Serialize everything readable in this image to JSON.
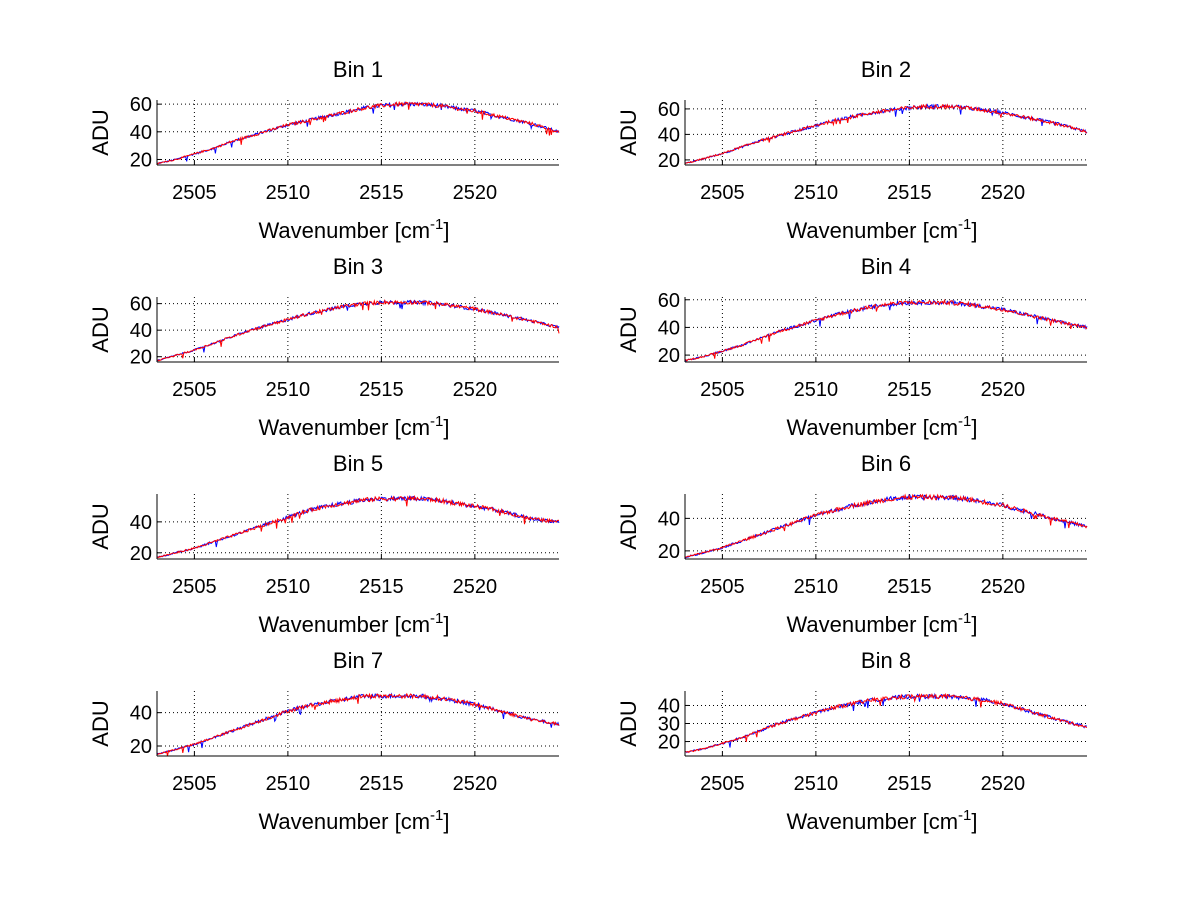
{
  "figure": {
    "background": "#ffffff",
    "series_colors": [
      "#0000ff",
      "#ff0000"
    ]
  },
  "chart_data": [
    {
      "type": "line",
      "title": "Bin 1",
      "xlabel": "Wavenumber [cm",
      "xlabel_sup": "-1",
      "xlabel_close": "]",
      "ylabel": "ADU",
      "xlim": [
        2503,
        2524.5
      ],
      "ylim": [
        16,
        63
      ],
      "xticks": [
        2505,
        2510,
        2515,
        2520
      ],
      "yticks": [
        20,
        40,
        60
      ],
      "grid": true,
      "x": [
        2503,
        2504,
        2505,
        2506,
        2507,
        2508,
        2509,
        2510,
        2511,
        2512,
        2513,
        2514,
        2515,
        2516,
        2517,
        2518,
        2519,
        2520,
        2521,
        2522,
        2523,
        2524.5
      ],
      "series": [
        {
          "values": [
            17,
            20,
            24,
            28,
            33,
            37,
            41,
            45,
            48,
            51,
            54,
            57,
            59,
            60,
            60,
            59,
            57,
            55,
            52,
            49,
            46,
            40
          ]
        },
        {
          "values": [
            17,
            20,
            24,
            28,
            33,
            37,
            41,
            45,
            48,
            51,
            54,
            57,
            59,
            60,
            60,
            59,
            57,
            55,
            52,
            49,
            46,
            40
          ]
        }
      ],
      "noise": 2.2
    },
    {
      "type": "line",
      "title": "Bin 2",
      "xlabel": "Wavenumber [cm",
      "xlabel_sup": "-1",
      "xlabel_close": "]",
      "ylabel": "ADU",
      "xlim": [
        2503,
        2524.5
      ],
      "ylim": [
        16,
        67
      ],
      "xticks": [
        2505,
        2510,
        2515,
        2520
      ],
      "yticks": [
        20,
        40,
        60
      ],
      "grid": true,
      "x": [
        2503,
        2504,
        2505,
        2506,
        2507,
        2508,
        2509,
        2510,
        2511,
        2512,
        2513,
        2514,
        2515,
        2516,
        2517,
        2518,
        2519,
        2520,
        2521,
        2522,
        2523,
        2524.5
      ],
      "series": [
        {
          "values": [
            17,
            21,
            25,
            30,
            35,
            39,
            43,
            47,
            51,
            54,
            57,
            59,
            61,
            62,
            62,
            61,
            59,
            57,
            54,
            51,
            48,
            42
          ]
        },
        {
          "values": [
            17,
            21,
            25,
            30,
            35,
            39,
            43,
            47,
            51,
            54,
            57,
            59,
            61,
            62,
            62,
            61,
            59,
            57,
            54,
            51,
            48,
            42
          ]
        }
      ],
      "noise": 2.4
    },
    {
      "type": "line",
      "title": "Bin 3",
      "xlabel": "Wavenumber [cm",
      "xlabel_sup": "-1",
      "xlabel_close": "]",
      "ylabel": "ADU",
      "xlim": [
        2503,
        2524.5
      ],
      "ylim": [
        16,
        65
      ],
      "xticks": [
        2505,
        2510,
        2515,
        2520
      ],
      "yticks": [
        20,
        40,
        60
      ],
      "grid": true,
      "x": [
        2503,
        2504,
        2505,
        2506,
        2507,
        2508,
        2509,
        2510,
        2511,
        2512,
        2513,
        2514,
        2515,
        2516,
        2517,
        2518,
        2519,
        2520,
        2521,
        2522,
        2523,
        2524.5
      ],
      "series": [
        {
          "values": [
            17,
            21,
            25,
            30,
            35,
            40,
            44,
            48,
            52,
            55,
            58,
            60,
            61,
            61,
            61,
            60,
            58,
            56,
            53,
            50,
            47,
            42
          ]
        },
        {
          "values": [
            17,
            21,
            25,
            30,
            35,
            40,
            44,
            48,
            52,
            55,
            58,
            60,
            61,
            61,
            61,
            60,
            58,
            56,
            53,
            50,
            47,
            42
          ]
        }
      ],
      "noise": 2.2
    },
    {
      "type": "line",
      "title": "Bin 4",
      "xlabel": "Wavenumber [cm",
      "xlabel_sup": "-1",
      "xlabel_close": "]",
      "ylabel": "ADU",
      "xlim": [
        2503,
        2524.5
      ],
      "ylim": [
        15,
        62
      ],
      "xticks": [
        2505,
        2510,
        2515,
        2520
      ],
      "yticks": [
        20,
        40,
        60
      ],
      "grid": true,
      "x": [
        2503,
        2504,
        2505,
        2506,
        2507,
        2508,
        2509,
        2510,
        2511,
        2512,
        2513,
        2514,
        2515,
        2516,
        2517,
        2518,
        2519,
        2520,
        2521,
        2522,
        2523,
        2524.5
      ],
      "series": [
        {
          "values": [
            16,
            19,
            23,
            27,
            32,
            37,
            41,
            45,
            49,
            52,
            55,
            57,
            58,
            58,
            58,
            57,
            55,
            53,
            50,
            47,
            44,
            40
          ]
        },
        {
          "values": [
            16,
            19,
            23,
            27,
            32,
            37,
            41,
            45,
            49,
            52,
            55,
            57,
            58,
            58,
            58,
            57,
            55,
            53,
            50,
            47,
            44,
            40
          ]
        }
      ],
      "noise": 2.3
    },
    {
      "type": "line",
      "title": "Bin 5",
      "xlabel": "Wavenumber [cm",
      "xlabel_sup": "-1",
      "xlabel_close": "]",
      "ylabel": "ADU",
      "xlim": [
        2503,
        2524.5
      ],
      "ylim": [
        16,
        58
      ],
      "xticks": [
        2505,
        2510,
        2515,
        2520
      ],
      "yticks": [
        20,
        40
      ],
      "grid": true,
      "x": [
        2503,
        2504,
        2505,
        2506,
        2507,
        2508,
        2509,
        2510,
        2511,
        2512,
        2513,
        2514,
        2515,
        2516,
        2517,
        2518,
        2519,
        2520,
        2521,
        2522,
        2523,
        2524.5
      ],
      "series": [
        {
          "values": [
            17,
            20,
            23,
            27,
            31,
            35,
            39,
            43,
            47,
            50,
            52,
            54,
            55,
            55,
            55,
            54,
            52,
            50,
            48,
            45,
            42,
            40
          ]
        },
        {
          "values": [
            17,
            20,
            23,
            27,
            31,
            35,
            39,
            43,
            47,
            50,
            52,
            54,
            55,
            55,
            55,
            54,
            52,
            50,
            48,
            45,
            42,
            40
          ]
        }
      ],
      "noise": 2.2
    },
    {
      "type": "line",
      "title": "Bin 6",
      "xlabel": "Wavenumber [cm",
      "xlabel_sup": "-1",
      "xlabel_close": "]",
      "ylabel": "ADU",
      "xlim": [
        2503,
        2524.5
      ],
      "ylim": [
        15,
        55
      ],
      "xticks": [
        2505,
        2510,
        2515,
        2520
      ],
      "yticks": [
        20,
        40
      ],
      "grid": true,
      "x": [
        2503,
        2504,
        2505,
        2506,
        2507,
        2508,
        2509,
        2510,
        2511,
        2512,
        2513,
        2514,
        2515,
        2516,
        2517,
        2518,
        2519,
        2520,
        2521,
        2522,
        2523,
        2524.5
      ],
      "series": [
        {
          "values": [
            16,
            19,
            22,
            26,
            30,
            34,
            38,
            42,
            45,
            48,
            50,
            52,
            53,
            53,
            53,
            52,
            50,
            48,
            45,
            42,
            39,
            35
          ]
        },
        {
          "values": [
            16,
            19,
            22,
            26,
            30,
            34,
            38,
            42,
            45,
            48,
            50,
            52,
            53,
            53,
            53,
            52,
            50,
            48,
            45,
            42,
            39,
            35
          ]
        }
      ],
      "noise": 2.2
    },
    {
      "type": "line",
      "title": "Bin 7",
      "xlabel": "Wavenumber [cm",
      "xlabel_sup": "-1",
      "xlabel_close": "]",
      "ylabel": "ADU",
      "xlim": [
        2503,
        2524.5
      ],
      "ylim": [
        14,
        53
      ],
      "xticks": [
        2505,
        2510,
        2515,
        2520
      ],
      "yticks": [
        20,
        40
      ],
      "grid": true,
      "x": [
        2503,
        2504,
        2505,
        2506,
        2507,
        2508,
        2509,
        2510,
        2511,
        2512,
        2513,
        2514,
        2515,
        2516,
        2517,
        2518,
        2519,
        2520,
        2521,
        2522,
        2523,
        2524.5
      ],
      "series": [
        {
          "values": [
            15,
            18,
            21,
            25,
            29,
            33,
            37,
            41,
            44,
            46,
            48,
            50,
            50,
            50,
            50,
            49,
            47,
            45,
            42,
            39,
            36,
            33
          ]
        },
        {
          "values": [
            15,
            18,
            21,
            25,
            29,
            33,
            37,
            41,
            44,
            46,
            48,
            50,
            50,
            50,
            50,
            49,
            47,
            45,
            42,
            39,
            36,
            33
          ]
        }
      ],
      "noise": 2.0
    },
    {
      "type": "line",
      "title": "Bin 8",
      "xlabel": "Wavenumber [cm",
      "xlabel_sup": "-1",
      "xlabel_close": "]",
      "ylabel": "ADU",
      "xlim": [
        2503,
        2524.5
      ],
      "ylim": [
        12,
        48
      ],
      "xticks": [
        2505,
        2510,
        2515,
        2520
      ],
      "yticks": [
        20,
        30,
        40
      ],
      "grid": true,
      "x": [
        2503,
        2504,
        2505,
        2506,
        2507,
        2508,
        2509,
        2510,
        2511,
        2512,
        2513,
        2514,
        2515,
        2516,
        2517,
        2518,
        2519,
        2520,
        2521,
        2522,
        2523,
        2524.5
      ],
      "series": [
        {
          "values": [
            14,
            16,
            19,
            22,
            26,
            30,
            33,
            36,
            39,
            41,
            43,
            44,
            45,
            45,
            45,
            44,
            43,
            41,
            38,
            35,
            32,
            28
          ]
        },
        {
          "values": [
            14,
            16,
            19,
            22,
            26,
            30,
            33,
            36,
            39,
            41,
            43,
            44,
            45,
            45,
            45,
            44,
            43,
            41,
            38,
            35,
            32,
            28
          ]
        }
      ],
      "noise": 1.8
    }
  ]
}
